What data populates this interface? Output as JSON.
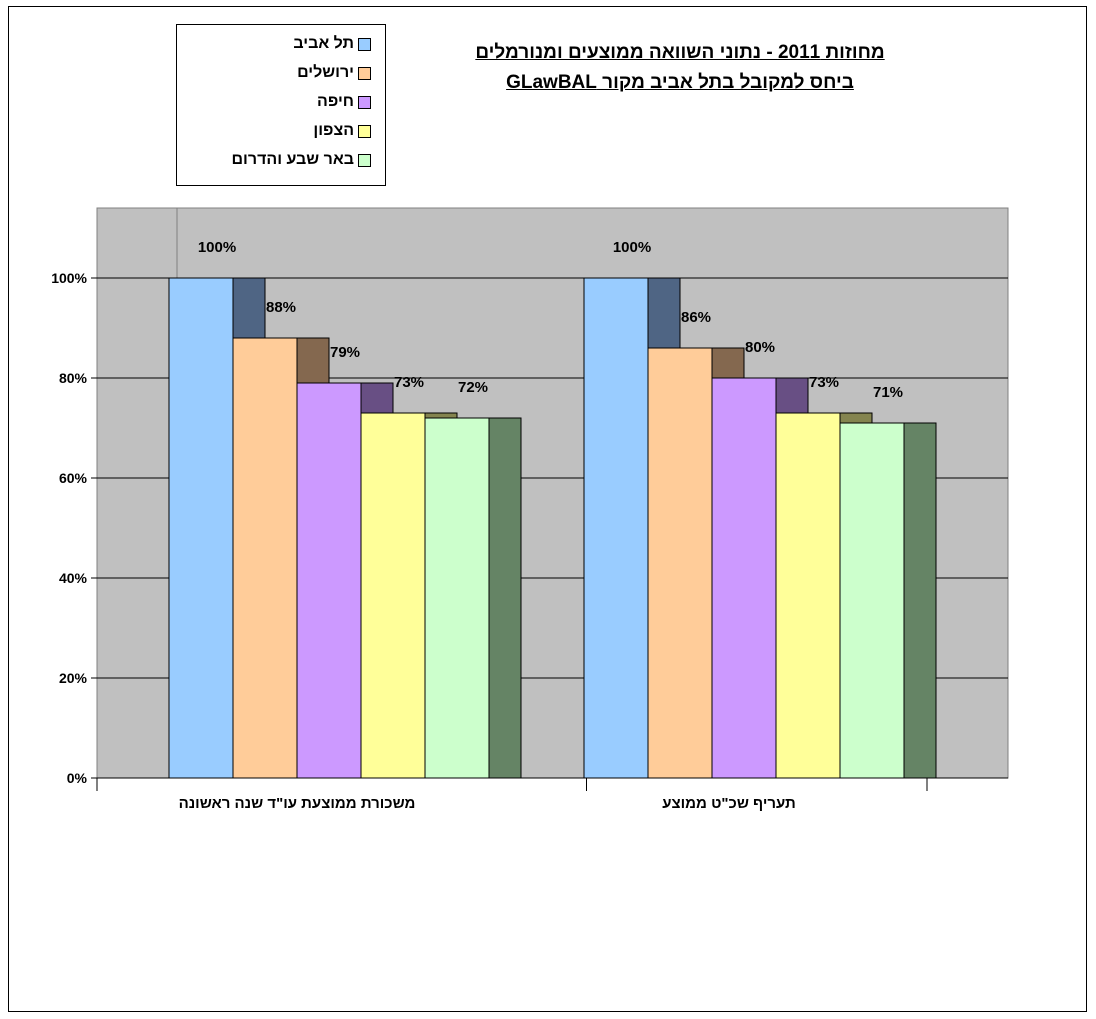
{
  "chart_data": {
    "type": "bar",
    "title_lines": [
      "מחוזות 2011 - נתוני השוואה ממוצעים ומנורמלים",
      "ביחס למקובל בתל אביב מקור GLawBAL"
    ],
    "categories": [
      "משכורת ממוצעת עו\"ד שנה ראשונה",
      "תעריף שכ\"ט ממוצע"
    ],
    "series": [
      {
        "name": "תל אביב",
        "values": [
          100,
          100
        ],
        "labels": [
          "100%",
          "100%"
        ],
        "color": "#99CCFF",
        "side_color": "#4F6584"
      },
      {
        "name": "ירושלים",
        "values": [
          88,
          86
        ],
        "labels": [
          "88%",
          "86%"
        ],
        "color": "#FFCC99",
        "side_color": "#84684F"
      },
      {
        "name": "חיפה",
        "values": [
          79,
          80
        ],
        "labels": [
          "79%",
          "80%"
        ],
        "color": "#CC99FF",
        "side_color": "#684F84"
      },
      {
        "name": "הצפון",
        "values": [
          73,
          73
        ],
        "labels": [
          "73%",
          "73%"
        ],
        "color": "#FFFF99",
        "side_color": "#84844F"
      },
      {
        "name": "באר שבע והדרום",
        "values": [
          72,
          71
        ],
        "labels": [
          "72%",
          "71%"
        ],
        "color": "#CCFFCC",
        "side_color": "#658465"
      }
    ],
    "ylim": [
      0,
      100
    ],
    "yticks": [
      0,
      20,
      40,
      60,
      80,
      100
    ],
    "ytick_labels": [
      "0%",
      "20%",
      "40%",
      "60%",
      "80%",
      "100%"
    ],
    "grid": true,
    "plot_background": "#C0C0C0",
    "legend_position": "top-left"
  }
}
